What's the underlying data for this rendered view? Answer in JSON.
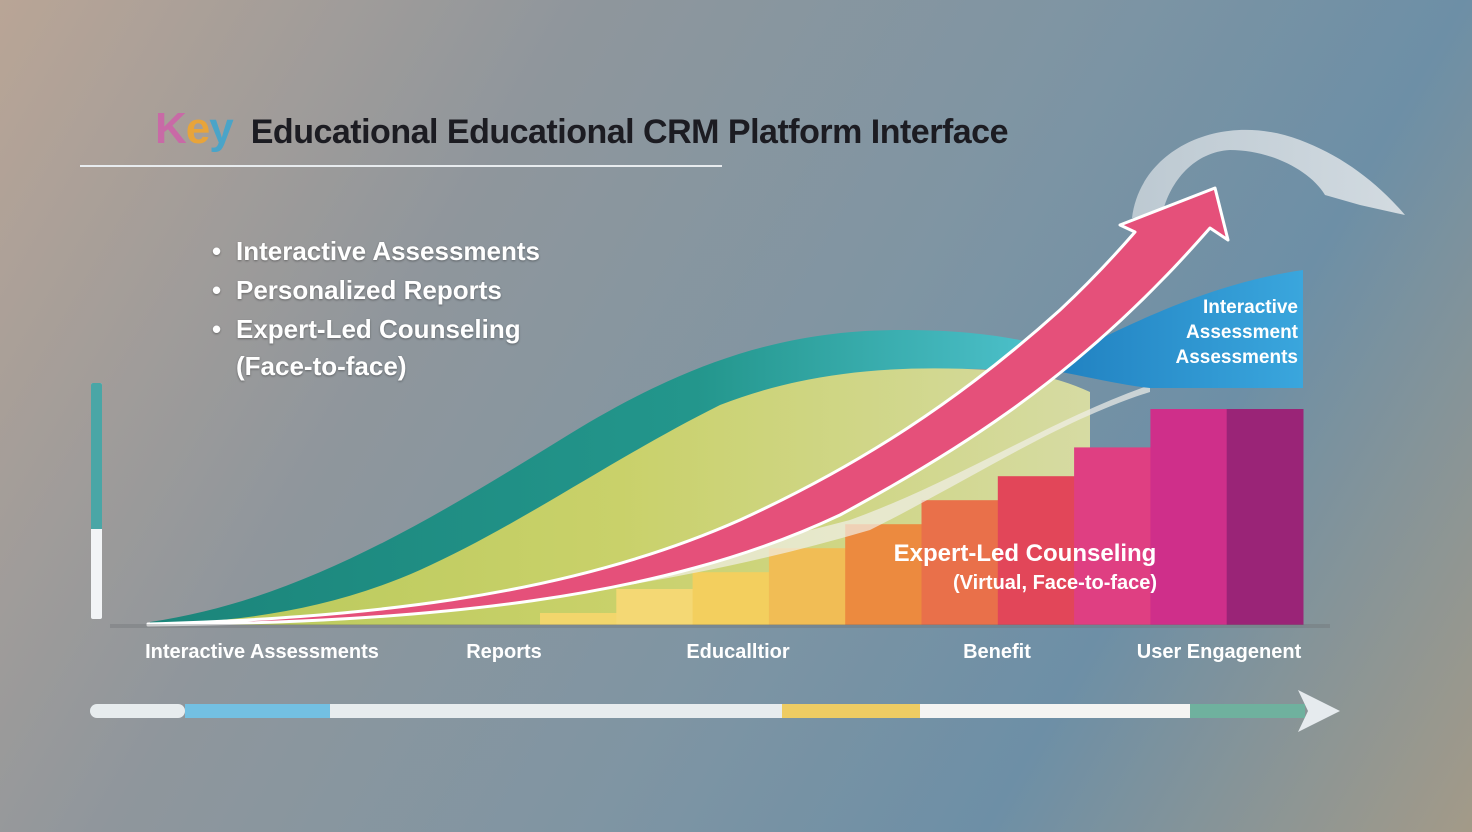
{
  "header": {
    "key_letters": [
      "K",
      "e",
      "y"
    ],
    "title": "Educational Educational CRM Platform Interface"
  },
  "bullets": {
    "items": [
      "Interactive Assessments",
      "Personalized Reports",
      "Expert-Led Counseling"
    ],
    "item3_sub": "(Face-to-face)"
  },
  "progress": {
    "vertical_fill": 0.62
  },
  "colors": {
    "teal": "#1f8f86",
    "lime": "#c6cf5c",
    "pink": "#e5507a",
    "blue": "#2b95cf",
    "purple": "#9a2477",
    "axis_arrow": "#e6ebee"
  },
  "chart_data": {
    "type": "area",
    "categories": [
      "Interactive Assessments",
      "Reports",
      "Educalltior",
      "Benefit",
      "User Engagenent"
    ],
    "annotations": [
      {
        "text": "Interactive Assessment Assessments",
        "lines": [
          "Interactive",
          "Assessment",
          "Assessments"
        ],
        "position": "top-right"
      },
      {
        "text": "Expert-Led Counseling (Virtual, Face-to-face)",
        "lines": [
          "Expert-Led Counseling",
          "(Virtual, Face-to-face)"
        ],
        "position": "center-right"
      }
    ],
    "columns": [
      {
        "color": "#f2d66c",
        "value": 0.05
      },
      {
        "color": "#f4d874",
        "value": 0.15
      },
      {
        "color": "#f3cf5e",
        "value": 0.22
      },
      {
        "color": "#f1bd55",
        "value": 0.32
      },
      {
        "color": "#ec8a3f",
        "value": 0.42
      },
      {
        "color": "#e9704a",
        "value": 0.52
      },
      {
        "color": "#e24659",
        "value": 0.62
      },
      {
        "color": "#df3f82",
        "value": 0.74
      },
      {
        "color": "#cf2f8a",
        "value": 0.9
      },
      {
        "color": "#9a2477",
        "value": 0.9
      }
    ],
    "timeline_segments": [
      {
        "color": "#e7ecee"
      },
      {
        "color": "#73c0e2"
      },
      {
        "color": "#e7ecee"
      },
      {
        "color": "#eecc63"
      },
      {
        "color": "#f4f4f2"
      },
      {
        "color": "#6fb19e"
      }
    ],
    "grid": false,
    "legend": "none"
  }
}
